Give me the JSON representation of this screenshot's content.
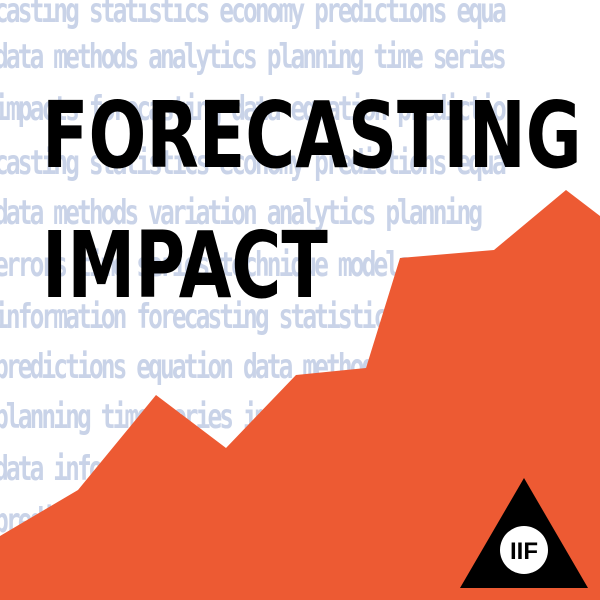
{
  "title": {
    "line1": "FORECASTING",
    "line2": "IMPACT"
  },
  "background_words": [
    "casting statistics economy predictions equa",
    "data methods analytics planning time series",
    "impacts forecasting data equation predictio",
    "casting statistics economy predictions equa",
    "data methods variation analytics planning",
    "errors time series technique models",
    "information forecasting statistics",
    "predictions equation data methods",
    "planning time series impacts",
    "data information",
    "predictions"
  ],
  "logo": {
    "text": "IIF"
  },
  "colors": {
    "background": "#ffffff",
    "background_text": "#c9d3e8",
    "chart_fill": "#ed5a33",
    "title": "#000000",
    "logo_triangle": "#000000",
    "logo_circle": "#ffffff",
    "logo_text": "#000000"
  },
  "icons": [
    "iif-logo-icon",
    "rising-chart-shape"
  ]
}
